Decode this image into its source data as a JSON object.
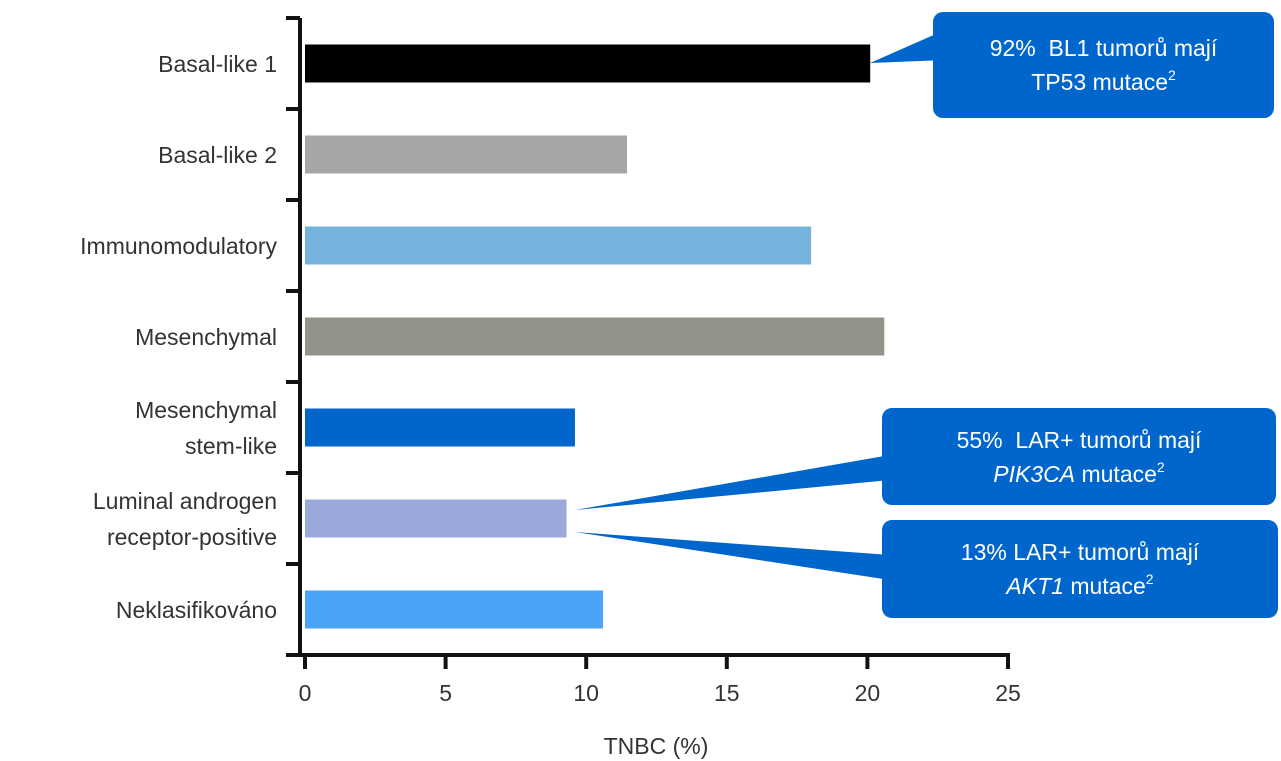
{
  "chart_data": {
    "type": "barh",
    "categories": [
      "Basal-like 1",
      "Basal-like 2",
      "Immunomodulatory",
      "Mesenchymal",
      "Mesenchymal\nstem-like",
      "Luminal androgen\nreceptor-positive",
      "Neklasifikováno"
    ],
    "values": [
      20.1,
      11.45,
      18,
      20.6,
      9.6,
      9.3,
      10.6
    ],
    "colors": [
      "#000000",
      "#a6a6a6",
      "#74b3dc",
      "#939389",
      "#0066cc",
      "#9aa9d9",
      "#4aa3f7"
    ],
    "xlim": [
      0,
      25
    ],
    "xticks": [
      0,
      5,
      10,
      15,
      20,
      25
    ],
    "x_label": "TNBC (%)",
    "annotations": [
      [
        {
          "text": "92%  BL1 tumorů mají\nTP53 mutace"
        },
        {
          "text": "2",
          "style": "sup"
        }
      ],
      [
        {
          "text": "55%  LAR+ tumorů mají\n"
        },
        {
          "text": "PIK3CA",
          "style": "italic"
        },
        {
          "text": " mutace"
        },
        {
          "text": "2",
          "style": "sup"
        }
      ],
      [
        {
          "text": "13% LAR+ tumorů mají\n"
        },
        {
          "text": "AKT1",
          "style": "italic"
        },
        {
          "text": " mutace"
        },
        {
          "text": "2",
          "style": "sup"
        }
      ]
    ]
  }
}
